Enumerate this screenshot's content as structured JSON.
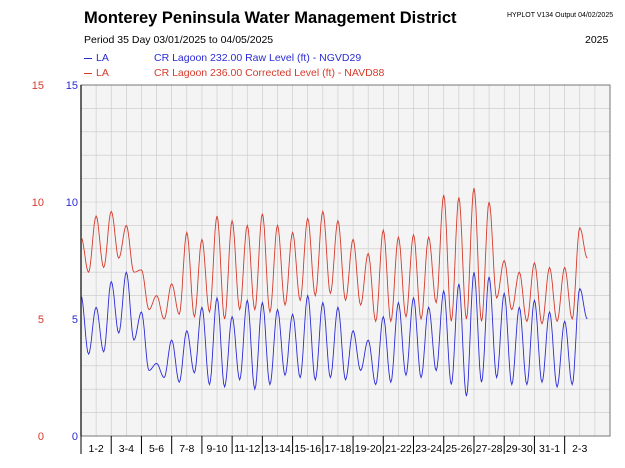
{
  "header": {
    "title": "Monterey Peninsula Water Management District",
    "hyplot": "HYPLOT V134  Output 04/02/2025",
    "period": "Period  35 Day    03/01/2025  to  04/05/2025",
    "year": "2025"
  },
  "legend": [
    {
      "site": "LA",
      "desc": "CR Lagoon  232.00 Raw Level (ft) - NGVD29",
      "color": "#2b2bd6"
    },
    {
      "site": "LA",
      "desc": "CR Lagoon  236.00 Corrected Level (ft) - NAVD88",
      "color": "#d63a2b"
    }
  ],
  "chart_data": {
    "type": "line",
    "x_unit": "day (March 2025)",
    "x_range": [
      1,
      36
    ],
    "ylim": [
      0,
      15
    ],
    "y_ticks": [
      0,
      5,
      10,
      15
    ],
    "left_tick_color": "#d63a2b",
    "right_tick_color": "#2b2bd6",
    "x_tick_labels": [
      "1-2",
      "3-4",
      "5-6",
      "7-8",
      "9-10",
      "11-12",
      "13-14",
      "15-16",
      "17-18",
      "19-20",
      "21-22",
      "23-24",
      "25-26",
      "27-28",
      "29-30",
      "31-1",
      "2-3"
    ],
    "grid": true,
    "plot_background": "#f4f4f4",
    "series": [
      {
        "name": "CR Lagoon 232.00 Raw Level (ft) - NGVD29",
        "color": "#2b2bd6",
        "x": [
          1.0,
          1.5,
          2.0,
          2.5,
          3.0,
          3.5,
          4.0,
          4.5,
          5.0,
          5.5,
          6.0,
          6.5,
          7.0,
          7.5,
          8.0,
          8.5,
          9.0,
          9.5,
          10.0,
          10.5,
          11.0,
          11.5,
          12.0,
          12.5,
          13.0,
          13.5,
          14.0,
          14.5,
          15.0,
          15.5,
          16.0,
          16.5,
          17.0,
          17.5,
          18.0,
          18.5,
          19.0,
          19.5,
          20.0,
          20.5,
          21.0,
          21.5,
          22.0,
          22.5,
          23.0,
          23.5,
          24.0,
          24.5,
          25.0,
          25.5,
          26.0,
          26.5,
          27.0,
          27.5,
          28.0,
          28.5,
          29.0,
          29.5,
          30.0,
          30.5,
          31.0,
          31.5,
          32.0,
          32.5,
          33.0,
          33.5,
          34.0,
          34.5
        ],
        "y": [
          6.0,
          3.5,
          5.5,
          3.6,
          6.6,
          4.4,
          7.0,
          4.1,
          5.3,
          2.8,
          3.1,
          2.5,
          4.1,
          2.3,
          4.5,
          2.7,
          5.5,
          2.2,
          5.9,
          2.1,
          5.1,
          2.4,
          5.8,
          2.0,
          5.7,
          2.2,
          5.4,
          2.6,
          5.2,
          2.5,
          6.0,
          2.4,
          5.7,
          2.5,
          5.5,
          2.4,
          4.5,
          2.8,
          4.1,
          2.2,
          5.1,
          2.3,
          5.7,
          2.6,
          5.9,
          2.5,
          5.5,
          2.8,
          6.2,
          2.2,
          6.5,
          1.7,
          7.0,
          2.3,
          6.8,
          2.5,
          6.1,
          2.2,
          5.5,
          2.2,
          5.8,
          2.3,
          5.3,
          2.1,
          4.9,
          2.2,
          6.3,
          5.0
        ]
      },
      {
        "name": "CR Lagoon 236.00 Corrected Level (ft) - NAVD88",
        "color": "#d63a2b",
        "x": [
          1.0,
          1.5,
          2.0,
          2.5,
          3.0,
          3.5,
          4.0,
          4.5,
          5.0,
          5.5,
          6.0,
          6.5,
          7.0,
          7.5,
          8.0,
          8.5,
          9.0,
          9.5,
          10.0,
          10.5,
          11.0,
          11.5,
          12.0,
          12.5,
          13.0,
          13.5,
          14.0,
          14.5,
          15.0,
          15.5,
          16.0,
          16.5,
          17.0,
          17.5,
          18.0,
          18.5,
          19.0,
          19.5,
          20.0,
          20.5,
          21.0,
          21.5,
          22.0,
          22.5,
          23.0,
          23.5,
          24.0,
          24.5,
          25.0,
          25.5,
          26.0,
          26.5,
          27.0,
          27.5,
          28.0,
          28.5,
          29.0,
          29.5,
          30.0,
          30.5,
          31.0,
          31.5,
          32.0,
          32.5,
          33.0,
          33.5,
          34.0,
          34.5
        ],
        "y": [
          8.5,
          7.0,
          9.4,
          7.2,
          9.6,
          7.6,
          9.0,
          7.0,
          7.1,
          5.4,
          6.0,
          5.0,
          6.5,
          5.2,
          8.7,
          5.1,
          8.4,
          5.3,
          9.4,
          5.0,
          9.2,
          5.4,
          9.0,
          5.4,
          9.5,
          5.3,
          9.0,
          5.6,
          8.7,
          5.8,
          9.3,
          6.0,
          9.6,
          6.1,
          9.2,
          5.8,
          8.4,
          5.6,
          7.8,
          4.9,
          8.8,
          4.9,
          8.5,
          5.1,
          8.6,
          5.0,
          8.5,
          5.7,
          10.3,
          4.9,
          10.2,
          5.0,
          10.6,
          4.9,
          10.0,
          5.9,
          7.5,
          5.4,
          7.0,
          4.9,
          7.4,
          4.8,
          7.2,
          4.9,
          7.2,
          5.0,
          8.9,
          7.6
        ]
      }
    ]
  }
}
